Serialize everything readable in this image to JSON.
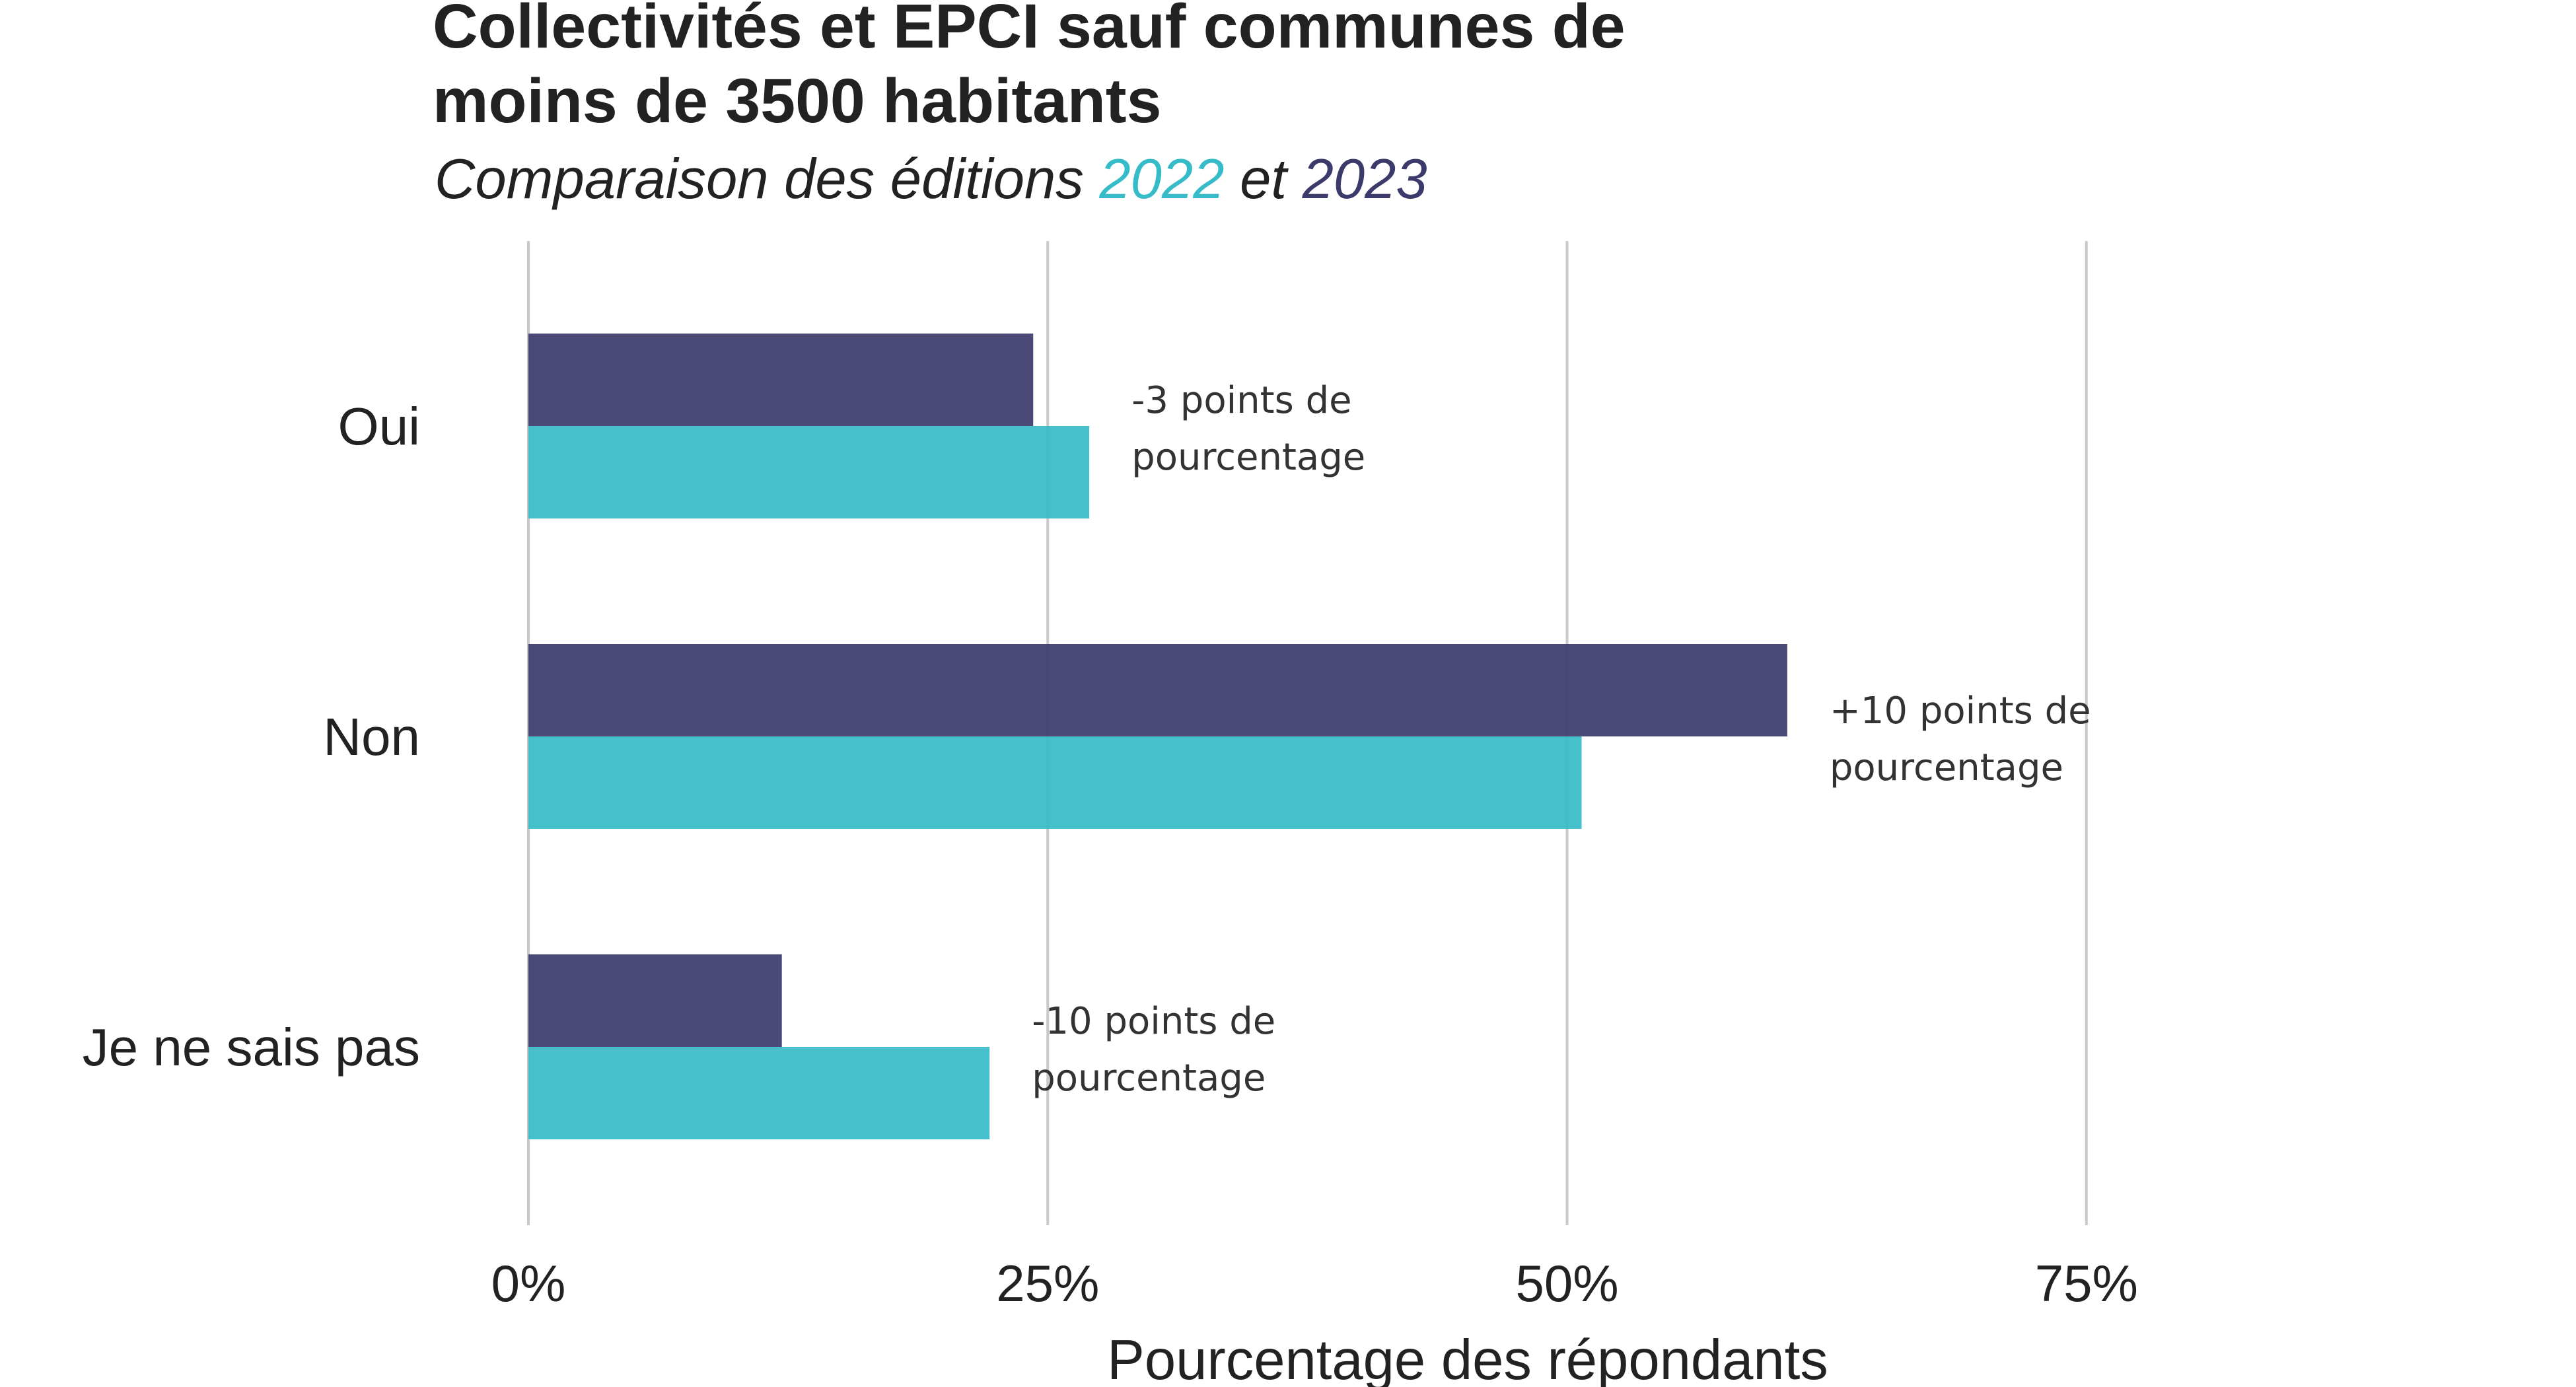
{
  "chart_data": {
    "type": "bar",
    "orientation": "horizontal",
    "title_lines": [
      "Collectivités et EPCI sauf communes de",
      "moins de 3500 habitants"
    ],
    "subtitle": {
      "prefix": "Comparaison des éditions ",
      "year_a": "2022",
      "middle": " et ",
      "year_b": "2023"
    },
    "categories": [
      "Oui",
      "Non",
      "Je ne sais pas"
    ],
    "series": [
      {
        "name": "2023",
        "color": "#3b3a6b",
        "values": [
          24.3,
          60.6,
          12.2
        ]
      },
      {
        "name": "2022",
        "color": "#36bcc8",
        "values": [
          27.0,
          50.7,
          22.2
        ]
      }
    ],
    "annotations": [
      [
        "-3 points de",
        "pourcentage"
      ],
      [
        "+10 points de",
        "pourcentage"
      ],
      [
        "-10 points de",
        "pourcentage"
      ]
    ],
    "xlim": [
      0,
      100
    ],
    "xticks": [
      0,
      25,
      50,
      75
    ],
    "xtick_labels": [
      "0%",
      "25%",
      "50%",
      "75%"
    ],
    "xlabel": "Pourcentage des répondants",
    "grid": true
  }
}
